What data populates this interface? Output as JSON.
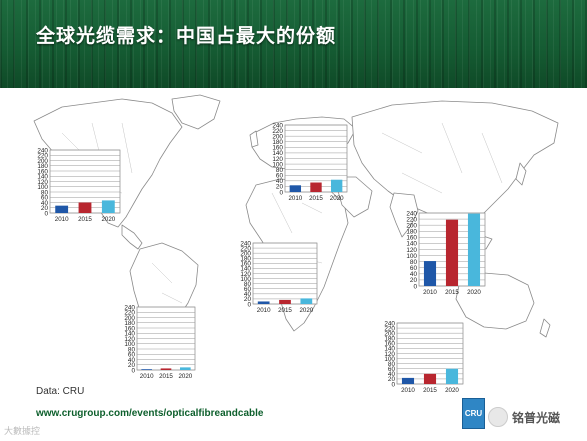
{
  "header": {
    "title": "全球光缆需求：中国占最大的份额"
  },
  "footer": {
    "source": "Data: CRU",
    "url": "www.crugroup.com/events/opticalfibreandcable",
    "logo_text": "CRU"
  },
  "watermarks": {
    "left": "大數據控",
    "right": "铭普光磁"
  },
  "colors": {
    "s2010": "#1f57a8",
    "s2015": "#b8262f",
    "s2020": "#49b7dc",
    "header": "#176036"
  },
  "chart_data": [
    {
      "type": "bar",
      "region": "North America",
      "categories": [
        "2010",
        "2015",
        "2020"
      ],
      "values": [
        28,
        40,
        48
      ],
      "ylim": [
        0,
        240
      ],
      "yticks": [
        0,
        20,
        40,
        60,
        80,
        100,
        120,
        140,
        160,
        180,
        200,
        220,
        240
      ]
    },
    {
      "type": "bar",
      "region": "Europe",
      "categories": [
        "2010",
        "2015",
        "2020"
      ],
      "values": [
        24,
        34,
        44
      ],
      "ylim": [
        0,
        240
      ],
      "yticks": [
        0,
        20,
        40,
        60,
        80,
        100,
        120,
        140,
        160,
        180,
        200,
        220,
        240
      ]
    },
    {
      "type": "bar",
      "region": "Asia",
      "categories": [
        "2010",
        "2015",
        "2020"
      ],
      "values": [
        82,
        218,
        238
      ],
      "ylim": [
        0,
        240
      ],
      "yticks": [
        0,
        20,
        40,
        60,
        80,
        100,
        120,
        140,
        160,
        180,
        200,
        220,
        240
      ]
    },
    {
      "type": "bar",
      "region": "Africa & Middle East",
      "categories": [
        "2010",
        "2015",
        "2020"
      ],
      "values": [
        10,
        16,
        22
      ],
      "ylim": [
        0,
        240
      ],
      "yticks": [
        0,
        20,
        40,
        60,
        80,
        100,
        120,
        140,
        160,
        180,
        200,
        220,
        240
      ]
    },
    {
      "type": "bar",
      "region": "South America",
      "categories": [
        "2010",
        "2015",
        "2020"
      ],
      "values": [
        3,
        6,
        10
      ],
      "ylim": [
        0,
        240
      ],
      "yticks": [
        0,
        20,
        40,
        60,
        80,
        100,
        120,
        140,
        160,
        180,
        200,
        220,
        240
      ]
    },
    {
      "type": "bar",
      "region": "Oceania",
      "categories": [
        "2010",
        "2015",
        "2020"
      ],
      "values": [
        24,
        40,
        60
      ],
      "ylim": [
        0,
        240
      ],
      "yticks": [
        0,
        20,
        40,
        60,
        80,
        100,
        120,
        140,
        160,
        180,
        200,
        220,
        240
      ]
    }
  ]
}
